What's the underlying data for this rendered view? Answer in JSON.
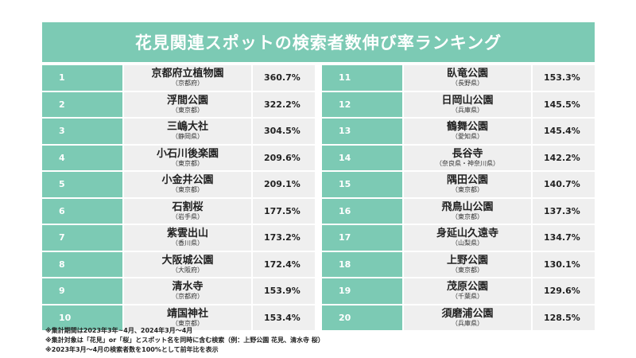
{
  "title": "花見関連スポットの検索者数伸び率ランキング",
  "rows": [
    {
      "rank": "1",
      "name": "京都府立植物園",
      "pref": "（京都府）",
      "pct": "360.7%"
    },
    {
      "rank": "2",
      "name": "浮間公園",
      "pref": "（東京都）",
      "pct": "322.2%"
    },
    {
      "rank": "3",
      "name": "三嶋大社",
      "pref": "（静岡県）",
      "pct": "304.5%"
    },
    {
      "rank": "4",
      "name": "小石川後楽園",
      "pref": "（東京都）",
      "pct": "209.6%"
    },
    {
      "rank": "5",
      "name": "小金井公園",
      "pref": "（東京都）",
      "pct": "209.1%"
    },
    {
      "rank": "6",
      "name": "石割桜",
      "pref": "（岩手県）",
      "pct": "177.5%"
    },
    {
      "rank": "7",
      "name": "紫雲出山",
      "pref": "（香川県）",
      "pct": "173.2%"
    },
    {
      "rank": "8",
      "name": "大阪城公園",
      "pref": "（大阪府）",
      "pct": "172.4%"
    },
    {
      "rank": "9",
      "name": "清水寺",
      "pref": "（京都府）",
      "pct": "153.9%"
    },
    {
      "rank": "10",
      "name": "靖国神社",
      "pref": "（東京都）",
      "pct": "153.4%"
    },
    {
      "rank": "11",
      "name": "臥竜公園",
      "pref": "（長野県）",
      "pct": "153.3%"
    },
    {
      "rank": "12",
      "name": "日岡山公園",
      "pref": "（兵庫県）",
      "pct": "145.5%"
    },
    {
      "rank": "13",
      "name": "鶴舞公園",
      "pref": "（愛知県）",
      "pct": "145.4%"
    },
    {
      "rank": "14",
      "name": "長谷寺",
      "pref": "（奈良県・神奈川県）",
      "pct": "142.2%"
    },
    {
      "rank": "15",
      "name": "隅田公園",
      "pref": "（東京都）",
      "pct": "140.7%"
    },
    {
      "rank": "16",
      "name": "飛鳥山公園",
      "pref": "（東京都）",
      "pct": "137.3%"
    },
    {
      "rank": "17",
      "name": "身延山久遠寺",
      "pref": "（山梨県）",
      "pct": "134.7%"
    },
    {
      "rank": "18",
      "name": "上野公園",
      "pref": "（東京都）",
      "pct": "130.1%"
    },
    {
      "rank": "19",
      "name": "茂原公園",
      "pref": "（千葉県）",
      "pct": "129.6%"
    },
    {
      "rank": "20",
      "name": "須磨浦公園",
      "pref": "（兵庫県）",
      "pct": "128.5%"
    }
  ],
  "notes": [
    "※集計期間は2023年3年~4月、2024年3月～4月",
    "※集計対象は「花見」or「桜」とスポット名を同時に含む検索（例：上野公園 花見、清水寺 桜）",
    "※2023年3月～4月の検索者数を100%として前年比を表示"
  ],
  "colors": {
    "accent": "#7ccab4",
    "cell": "#efefef"
  }
}
